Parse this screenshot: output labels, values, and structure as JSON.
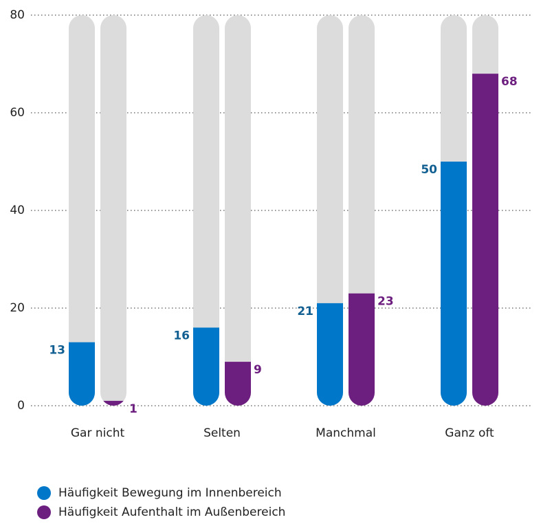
{
  "chart_data": {
    "type": "bar",
    "categories": [
      "Gar nicht",
      "Selten",
      "Manchmal",
      "Ganz oft"
    ],
    "series": [
      {
        "name": "Häufigkeit Bewegung im Innenbereich",
        "color": "#0077c8",
        "values": [
          13,
          16,
          21,
          50
        ]
      },
      {
        "name": "Häufigkeit Aufenthalt im Außenbereich",
        "color": "#6d1f80",
        "values": [
          1,
          9,
          23,
          68
        ]
      }
    ],
    "ylim": [
      0,
      80
    ],
    "yticks": [
      0,
      20,
      40,
      60,
      80
    ],
    "grid": true
  }
}
